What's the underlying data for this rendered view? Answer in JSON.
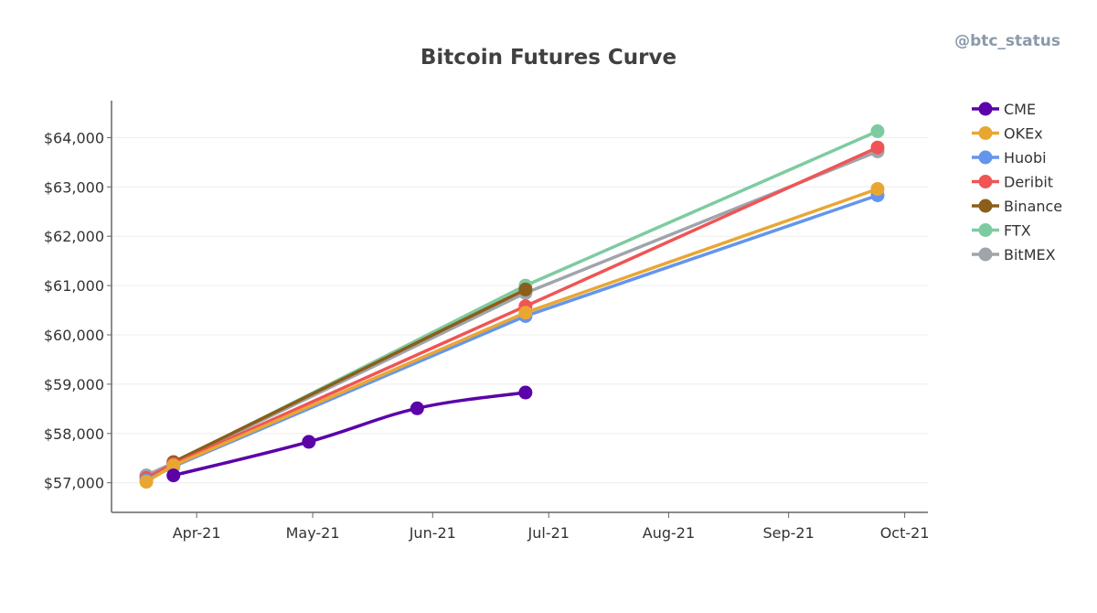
{
  "watermark": "@btc_status",
  "colors": {
    "CME": "#5b02a8",
    "OKEx": "#e8a733",
    "Huobi": "#6495ed",
    "Deribit": "#f05454",
    "Binance": "#8b5e1a",
    "FTX": "#7ecba1",
    "BitMEX": "#a0a4ab",
    "axis": "#666666",
    "grid": "#eeeeee"
  },
  "chart_data": {
    "type": "line",
    "title": "Bitcoin Futures Curve",
    "xlabel": "",
    "ylabel": "",
    "x_ticks": [
      {
        "date": "2021-04-01",
        "label": "Apr-21"
      },
      {
        "date": "2021-05-01",
        "label": "May-21"
      },
      {
        "date": "2021-06-01",
        "label": "Jun-21"
      },
      {
        "date": "2021-07-01",
        "label": "Jul-21"
      },
      {
        "date": "2021-08-01",
        "label": "Aug-21"
      },
      {
        "date": "2021-09-01",
        "label": "Sep-21"
      },
      {
        "date": "2021-10-01",
        "label": "Oct-21"
      }
    ],
    "xlim": [
      "2021-03-10",
      "2021-10-07"
    ],
    "y_ticks": [
      {
        "value": 57000,
        "label": "$57,000"
      },
      {
        "value": 58000,
        "label": "$58,000"
      },
      {
        "value": 59000,
        "label": "$59,000"
      },
      {
        "value": 60000,
        "label": "$60,000"
      },
      {
        "value": 61000,
        "label": "$61,000"
      },
      {
        "value": 62000,
        "label": "$62,000"
      },
      {
        "value": 63000,
        "label": "$63,000"
      },
      {
        "value": 64000,
        "label": "$64,000"
      }
    ],
    "ylim": [
      56400,
      64750
    ],
    "grid": true,
    "legend_position": "right",
    "series": [
      {
        "name": "FTX",
        "smooth": false,
        "points": [
          {
            "x": "2021-03-19",
            "y": 57150
          },
          {
            "x": "2021-03-26",
            "y": 57400
          },
          {
            "x": "2021-06-25",
            "y": 61000
          },
          {
            "x": "2021-09-24",
            "y": 64130
          }
        ]
      },
      {
        "name": "BitMEX",
        "smooth": false,
        "points": [
          {
            "x": "2021-03-19",
            "y": 57150
          },
          {
            "x": "2021-03-26",
            "y": 57400
          },
          {
            "x": "2021-06-25",
            "y": 60850
          },
          {
            "x": "2021-09-24",
            "y": 63720
          }
        ]
      },
      {
        "name": "Binance",
        "smooth": false,
        "points": [
          {
            "x": "2021-03-26",
            "y": 57420
          },
          {
            "x": "2021-06-25",
            "y": 60920
          }
        ]
      },
      {
        "name": "Deribit",
        "smooth": false,
        "points": [
          {
            "x": "2021-03-19",
            "y": 57100
          },
          {
            "x": "2021-03-26",
            "y": 57380
          },
          {
            "x": "2021-06-25",
            "y": 60580
          },
          {
            "x": "2021-09-24",
            "y": 63800
          }
        ]
      },
      {
        "name": "Huobi",
        "smooth": false,
        "points": [
          {
            "x": "2021-03-19",
            "y": 57050
          },
          {
            "x": "2021-03-26",
            "y": 57330
          },
          {
            "x": "2021-06-25",
            "y": 60380
          },
          {
            "x": "2021-09-24",
            "y": 62830
          }
        ]
      },
      {
        "name": "OKEx",
        "smooth": false,
        "points": [
          {
            "x": "2021-03-19",
            "y": 57020
          },
          {
            "x": "2021-03-26",
            "y": 57350
          },
          {
            "x": "2021-06-25",
            "y": 60450
          },
          {
            "x": "2021-09-24",
            "y": 62960
          }
        ]
      },
      {
        "name": "CME",
        "smooth": true,
        "points": [
          {
            "x": "2021-03-26",
            "y": 57150
          },
          {
            "x": "2021-04-30",
            "y": 57830
          },
          {
            "x": "2021-05-28",
            "y": 58510
          },
          {
            "x": "2021-06-25",
            "y": 58830
          }
        ]
      }
    ],
    "legend_order": [
      "CME",
      "OKEx",
      "Huobi",
      "Deribit",
      "Binance",
      "FTX",
      "BitMEX"
    ]
  }
}
